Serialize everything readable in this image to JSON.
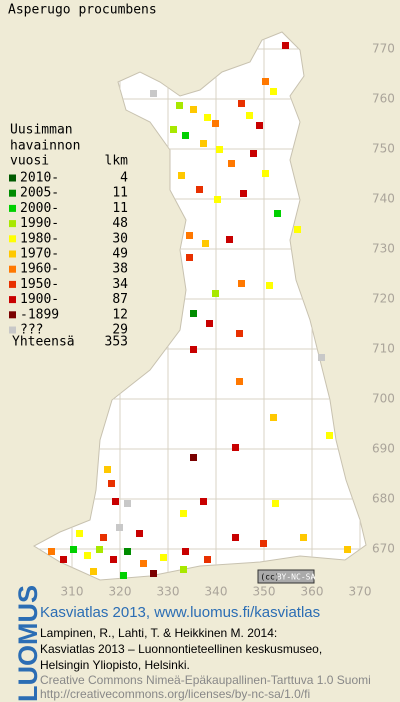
{
  "title": "Asperugo procumbens",
  "legend": {
    "heading": [
      "Uusimman",
      "havainnon",
      "vuosi"
    ],
    "count_heading": "lkm",
    "entries": [
      {
        "label": "2010-",
        "count": 4,
        "color": "#005a00"
      },
      {
        "label": "2005-",
        "count": 11,
        "color": "#008c00"
      },
      {
        "label": "2000-",
        "count": 11,
        "color": "#00d000"
      },
      {
        "label": "1990-",
        "count": 48,
        "color": "#a8e800"
      },
      {
        "label": "1980-",
        "count": 30,
        "color": "#ffff00"
      },
      {
        "label": "1970-",
        "count": 49,
        "color": "#ffc800"
      },
      {
        "label": "1960-",
        "count": 38,
        "color": "#ff7800"
      },
      {
        "label": "1950-",
        "count": 34,
        "color": "#e83000"
      },
      {
        "label": "1900-",
        "count": 87,
        "color": "#c80000"
      },
      {
        "label": "-1899",
        "count": 12,
        "color": "#7a0000"
      },
      {
        "label": "???",
        "count": 29,
        "color": "#c8c8c8"
      }
    ],
    "total_label": "Yhteensä",
    "total": 353
  },
  "grid": {
    "xticks": [
      310,
      320,
      330,
      340,
      350,
      360,
      370
    ],
    "yticks": [
      770,
      760,
      750,
      740,
      730,
      720,
      710,
      700,
      690,
      680,
      670
    ]
  },
  "license_badge": [
    "(cc)",
    "BY-NC-SA"
  ],
  "footer": {
    "logo": "LUOMUS",
    "atlas": "Kasviatlas 2013, www.luomus.fi/kasviatlas",
    "citation": [
      "Lampinen, R., Lahti, T. & Heikkinen M. 2014:",
      "Kasviatlas 2013 – Luonnontieteellinen keskusmuseo,",
      "Helsingin Yliopisto, Helsinki."
    ],
    "license": [
      "Creative Commons Nimeä-Epäkaupallinen-Tarttuva 1.0 Suomi",
      "http://creativecommons.org/licenses/by-nc-sa/1.0/fi"
    ]
  }
}
